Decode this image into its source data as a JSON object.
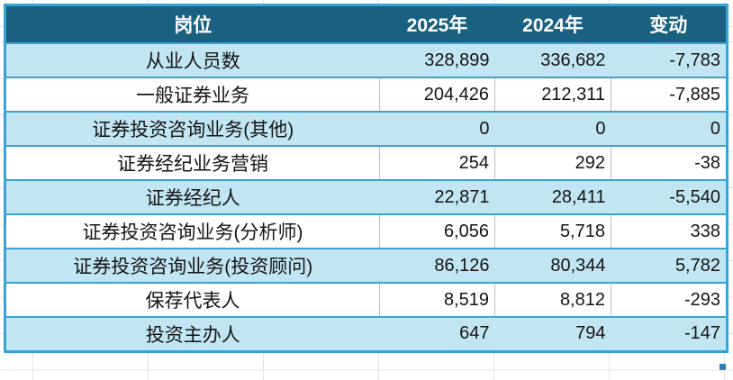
{
  "header": {
    "position": "岗位",
    "y2025": "2025年",
    "y2024": "2024年",
    "change": "变动"
  },
  "rows": [
    {
      "label": "从业人员数",
      "y2025": "328,899",
      "y2024": "336,682",
      "change": "-7,783"
    },
    {
      "label": "一般证券业务",
      "y2025": "204,426",
      "y2024": "212,311",
      "change": "-7,885"
    },
    {
      "label": "证券投资咨询业务(其他)",
      "y2025": "0",
      "y2024": "0",
      "change": "0"
    },
    {
      "label": "证券经纪业务营销",
      "y2025": "254",
      "y2024": "292",
      "change": "-38"
    },
    {
      "label": "证券经纪人",
      "y2025": "22,871",
      "y2024": "28,411",
      "change": "-5,540"
    },
    {
      "label": "证券投资咨询业务(分析师)",
      "y2025": "6,056",
      "y2024": "5,718",
      "change": "338"
    },
    {
      "label": "证券投资咨询业务(投资顾问)",
      "y2025": "86,126",
      "y2024": "80,344",
      "change": "5,782"
    },
    {
      "label": "保荐代表人",
      "y2025": "8,519",
      "y2024": "8,812",
      "change": "-293"
    },
    {
      "label": "投资主办人",
      "y2025": "647",
      "y2024": "794",
      "change": "-147"
    }
  ],
  "colors": {
    "header_bg": "#1a6080",
    "header_text": "#ffffff",
    "row_alt_bg": "#c2e5f3",
    "row_bg": "#ffffff",
    "selection_border": "#3aa2d4",
    "cell_divider": "#bebebe",
    "gridline": "#dde4ec",
    "fill_handle": "#2b7cb9"
  }
}
